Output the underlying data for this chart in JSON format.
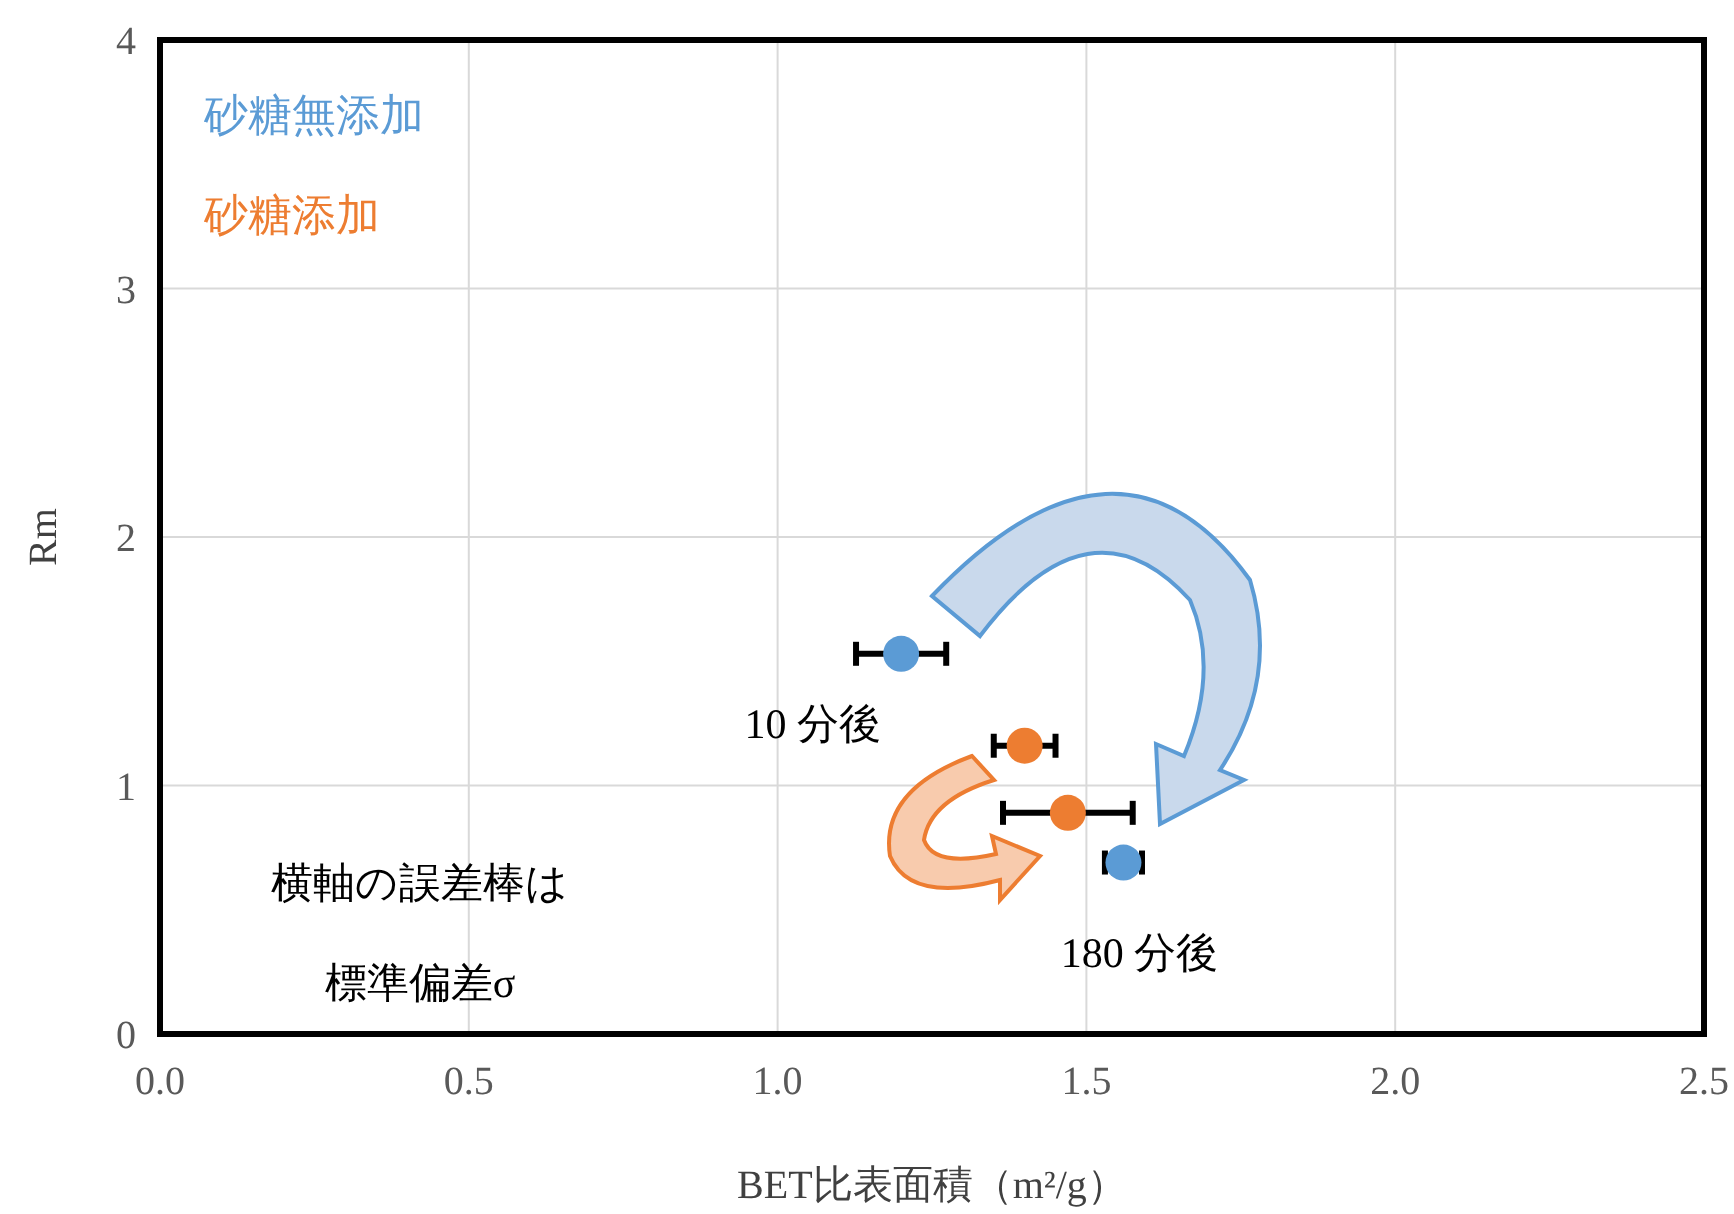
{
  "chart_data": {
    "type": "scatter",
    "xlabel": "BET比表面積（m²/g）",
    "ylabel": "Rm",
    "xlim": [
      0,
      2.5
    ],
    "ylim": [
      0,
      4
    ],
    "xticks": [
      {
        "value": 0,
        "label": "0.0"
      },
      {
        "value": 0.5,
        "label": "0.5"
      },
      {
        "value": 1,
        "label": "1.0"
      },
      {
        "value": 1.5,
        "label": "1.5"
      },
      {
        "value": 2,
        "label": "2.0"
      },
      {
        "value": 2.5,
        "label": "2.5"
      }
    ],
    "yticks": [
      0,
      1,
      2,
      3,
      4
    ],
    "grid": true,
    "legend": "top left",
    "marker": "circle",
    "series": [
      {
        "name": "砂糖無添加",
        "color": "#5b9bd5",
        "x": [
          1.2,
          1.56
        ],
        "values": [
          1.53,
          0.69
        ],
        "xerrors": [
          0.073,
          0.03
        ]
      },
      {
        "name": "砂糖添加",
        "color": "#ed7d31",
        "x": [
          1.4,
          1.47
        ],
        "values": [
          1.16,
          0.89
        ],
        "xerrors": [
          0.05,
          0.105
        ]
      }
    ],
    "annotations": [
      {
        "text": "10 分後",
        "x": 1.2,
        "y": 1.53
      },
      {
        "text": "180 分後",
        "x": 1.56,
        "y": 0.69
      },
      "横軸の誤差棒は",
      "標準偏差σ"
    ]
  }
}
